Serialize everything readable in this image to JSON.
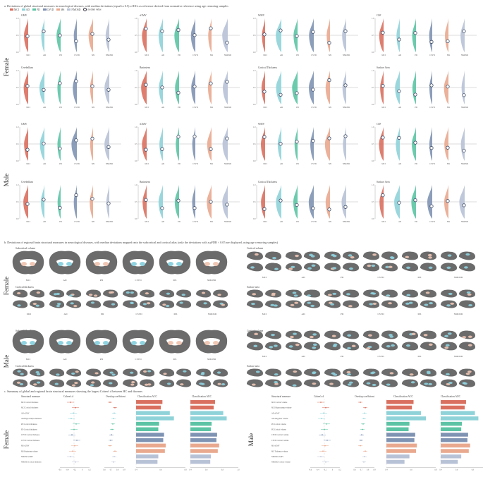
{
  "section_a": {
    "title": "a. Deviations of global structural measures in neurological diseases, with median deviations (equal to 0.5) of HCs as reference derived from normative reference using age censoring samples",
    "legend": [
      "MCI",
      "AD",
      "PD",
      "CSVD",
      "MS",
      "NMOSD",
      "median value"
    ],
    "sex_labels": [
      "Female",
      "Male"
    ],
    "groups": [
      "MCI",
      "AD",
      "PD",
      "CSVD",
      "MS",
      "NMOSD"
    ],
    "panels_row1": [
      "GMV",
      "sGMV",
      "WMV",
      "CSF"
    ],
    "panels_row2": [
      "Cerebellum",
      "Brainstem",
      "Cortical Thickness",
      "Surface Area"
    ],
    "yticks": [
      "1.0",
      "0.5",
      "0.0"
    ]
  },
  "section_b": {
    "title": "b. Deviations of regional brain structural measures in neurological diseases, with median deviations mapped onto the subcortical and cortical atlas (only the deviations with a pFDR < 0.05 are displayed, using age censoring samples)",
    "subcortical": "Subcortical volume",
    "cortical_volume": "Cortical volume",
    "cortical_thickness": "Cortical thickness",
    "surface_area": "Surface area",
    "groups": [
      "MCI",
      "AD",
      "PD",
      "CSVD",
      "MS",
      "NMOSD"
    ],
    "sex_labels": [
      "Female",
      "Male"
    ]
  },
  "section_c": {
    "title": "c. Summary of global and regional brain structural measures showing the largest Cohen's d between HC and diseases",
    "sex_labels": [
      "Female",
      "Male"
    ],
    "headers": [
      "Structural measure",
      "Cohen's d",
      "Overlap coefficient",
      "Classification ACC",
      "Classification AUC"
    ],
    "female_rows": [
      "MCI Cortical thickness",
      "MCI Cortical thickness",
      "AD sGMV",
      "AD Hippocampus thickness",
      "PD Cortical thickness",
      "PD Cortical thickness",
      "CSVD Cortical thickness",
      "CSVD Cortical thickness",
      "MS sGMV",
      "MS Brainstem volume",
      "NMOSD sGMV",
      "NMOSD Cortical thickness"
    ],
    "male_rows": [
      "MCI Cortical volume",
      "MCI Hippocampus volume",
      "AD sGMV",
      "AD Amygdala volume",
      "PD Cortical volume",
      "PD Cortical volume",
      "CSVD Cortical volume",
      "CSVD Cortical volume",
      "MS sGMV",
      "MS Thalamus volume",
      "NMOSD sGMV",
      "NMOSD Cortical volume"
    ],
    "female_acc": [
      0.62,
      0.6,
      0.71,
      0.76,
      0.58,
      0.57,
      0.64,
      0.63,
      0.66,
      0.65,
      0.57,
      0.56
    ],
    "female_auc": [
      0.66,
      0.64,
      0.78,
      0.83,
      0.61,
      0.6,
      0.69,
      0.68,
      0.72,
      0.7,
      0.6,
      0.59
    ],
    "male_acc": [
      0.63,
      0.61,
      0.72,
      0.78,
      0.58,
      0.57,
      0.65,
      0.64,
      0.67,
      0.66,
      0.58,
      0.52
    ],
    "male_auc": [
      0.67,
      0.65,
      0.8,
      0.85,
      0.61,
      0.6,
      0.7,
      0.69,
      0.73,
      0.71,
      0.6,
      0.55
    ],
    "d_ticks": [
      "-0.6",
      "-0.4",
      "-0.2",
      "0",
      "0.2"
    ],
    "ov_ticks": [
      "0.6",
      "0.7",
      "0.8",
      "0.9"
    ],
    "acc_ticks": [
      "0.4",
      "0.6",
      "0.8"
    ],
    "auc_ticks": [
      "0.4",
      "0.6",
      "0.8",
      "1.0"
    ]
  },
  "colors": {
    "MCI": "#d9705f",
    "AD": "#8fd3d9",
    "PD": "#5cc4a4",
    "CSVD": "#7f93b3",
    "MS": "#e9a98f",
    "NMOSD": "#b8c2d6",
    "brain": "#6b6b6b",
    "hl_blue": "#8fd3e0",
    "hl_pink": "#f0c7b5"
  }
}
